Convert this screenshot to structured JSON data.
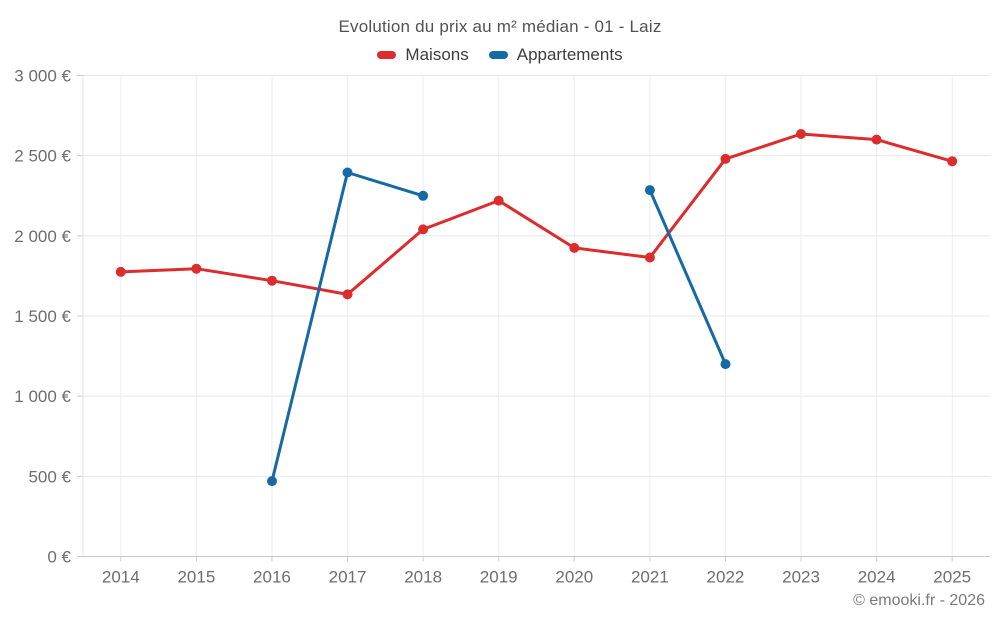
{
  "header": {
    "title": "Evolution du prix au m² médian - 01 - Laiz"
  },
  "legend": {
    "items": [
      {
        "id": "maisons",
        "label": "Maisons",
        "color": "#dd2c2c"
      },
      {
        "id": "appartements",
        "label": "Appartements",
        "color": "#1569a5"
      }
    ]
  },
  "footer": {
    "credit": "© emooki.fr - 2026"
  },
  "chart_data": {
    "type": "line",
    "title": "Evolution du prix au m² médian - 01 - Laiz",
    "categories": [
      "2014",
      "2015",
      "2016",
      "2017",
      "2018",
      "2019",
      "2020",
      "2021",
      "2022",
      "2023",
      "2024",
      "2025"
    ],
    "series": [
      {
        "name": "Maisons",
        "color": "#dd2c2c",
        "values": [
          1775,
          1795,
          1720,
          1635,
          2040,
          2220,
          1925,
          1865,
          2480,
          2635,
          2600,
          2465
        ]
      },
      {
        "name": "Appartements",
        "color": "#1569a5",
        "values": [
          null,
          null,
          470,
          2395,
          2250,
          null,
          null,
          2285,
          1200,
          null,
          null,
          null
        ]
      }
    ],
    "xlabel": "",
    "ylabel": "",
    "ylim": [
      0,
      3000
    ],
    "ytick_step": 500,
    "ytick_suffix": " €",
    "grid": true,
    "legend_position": "top",
    "marker": "circle"
  }
}
